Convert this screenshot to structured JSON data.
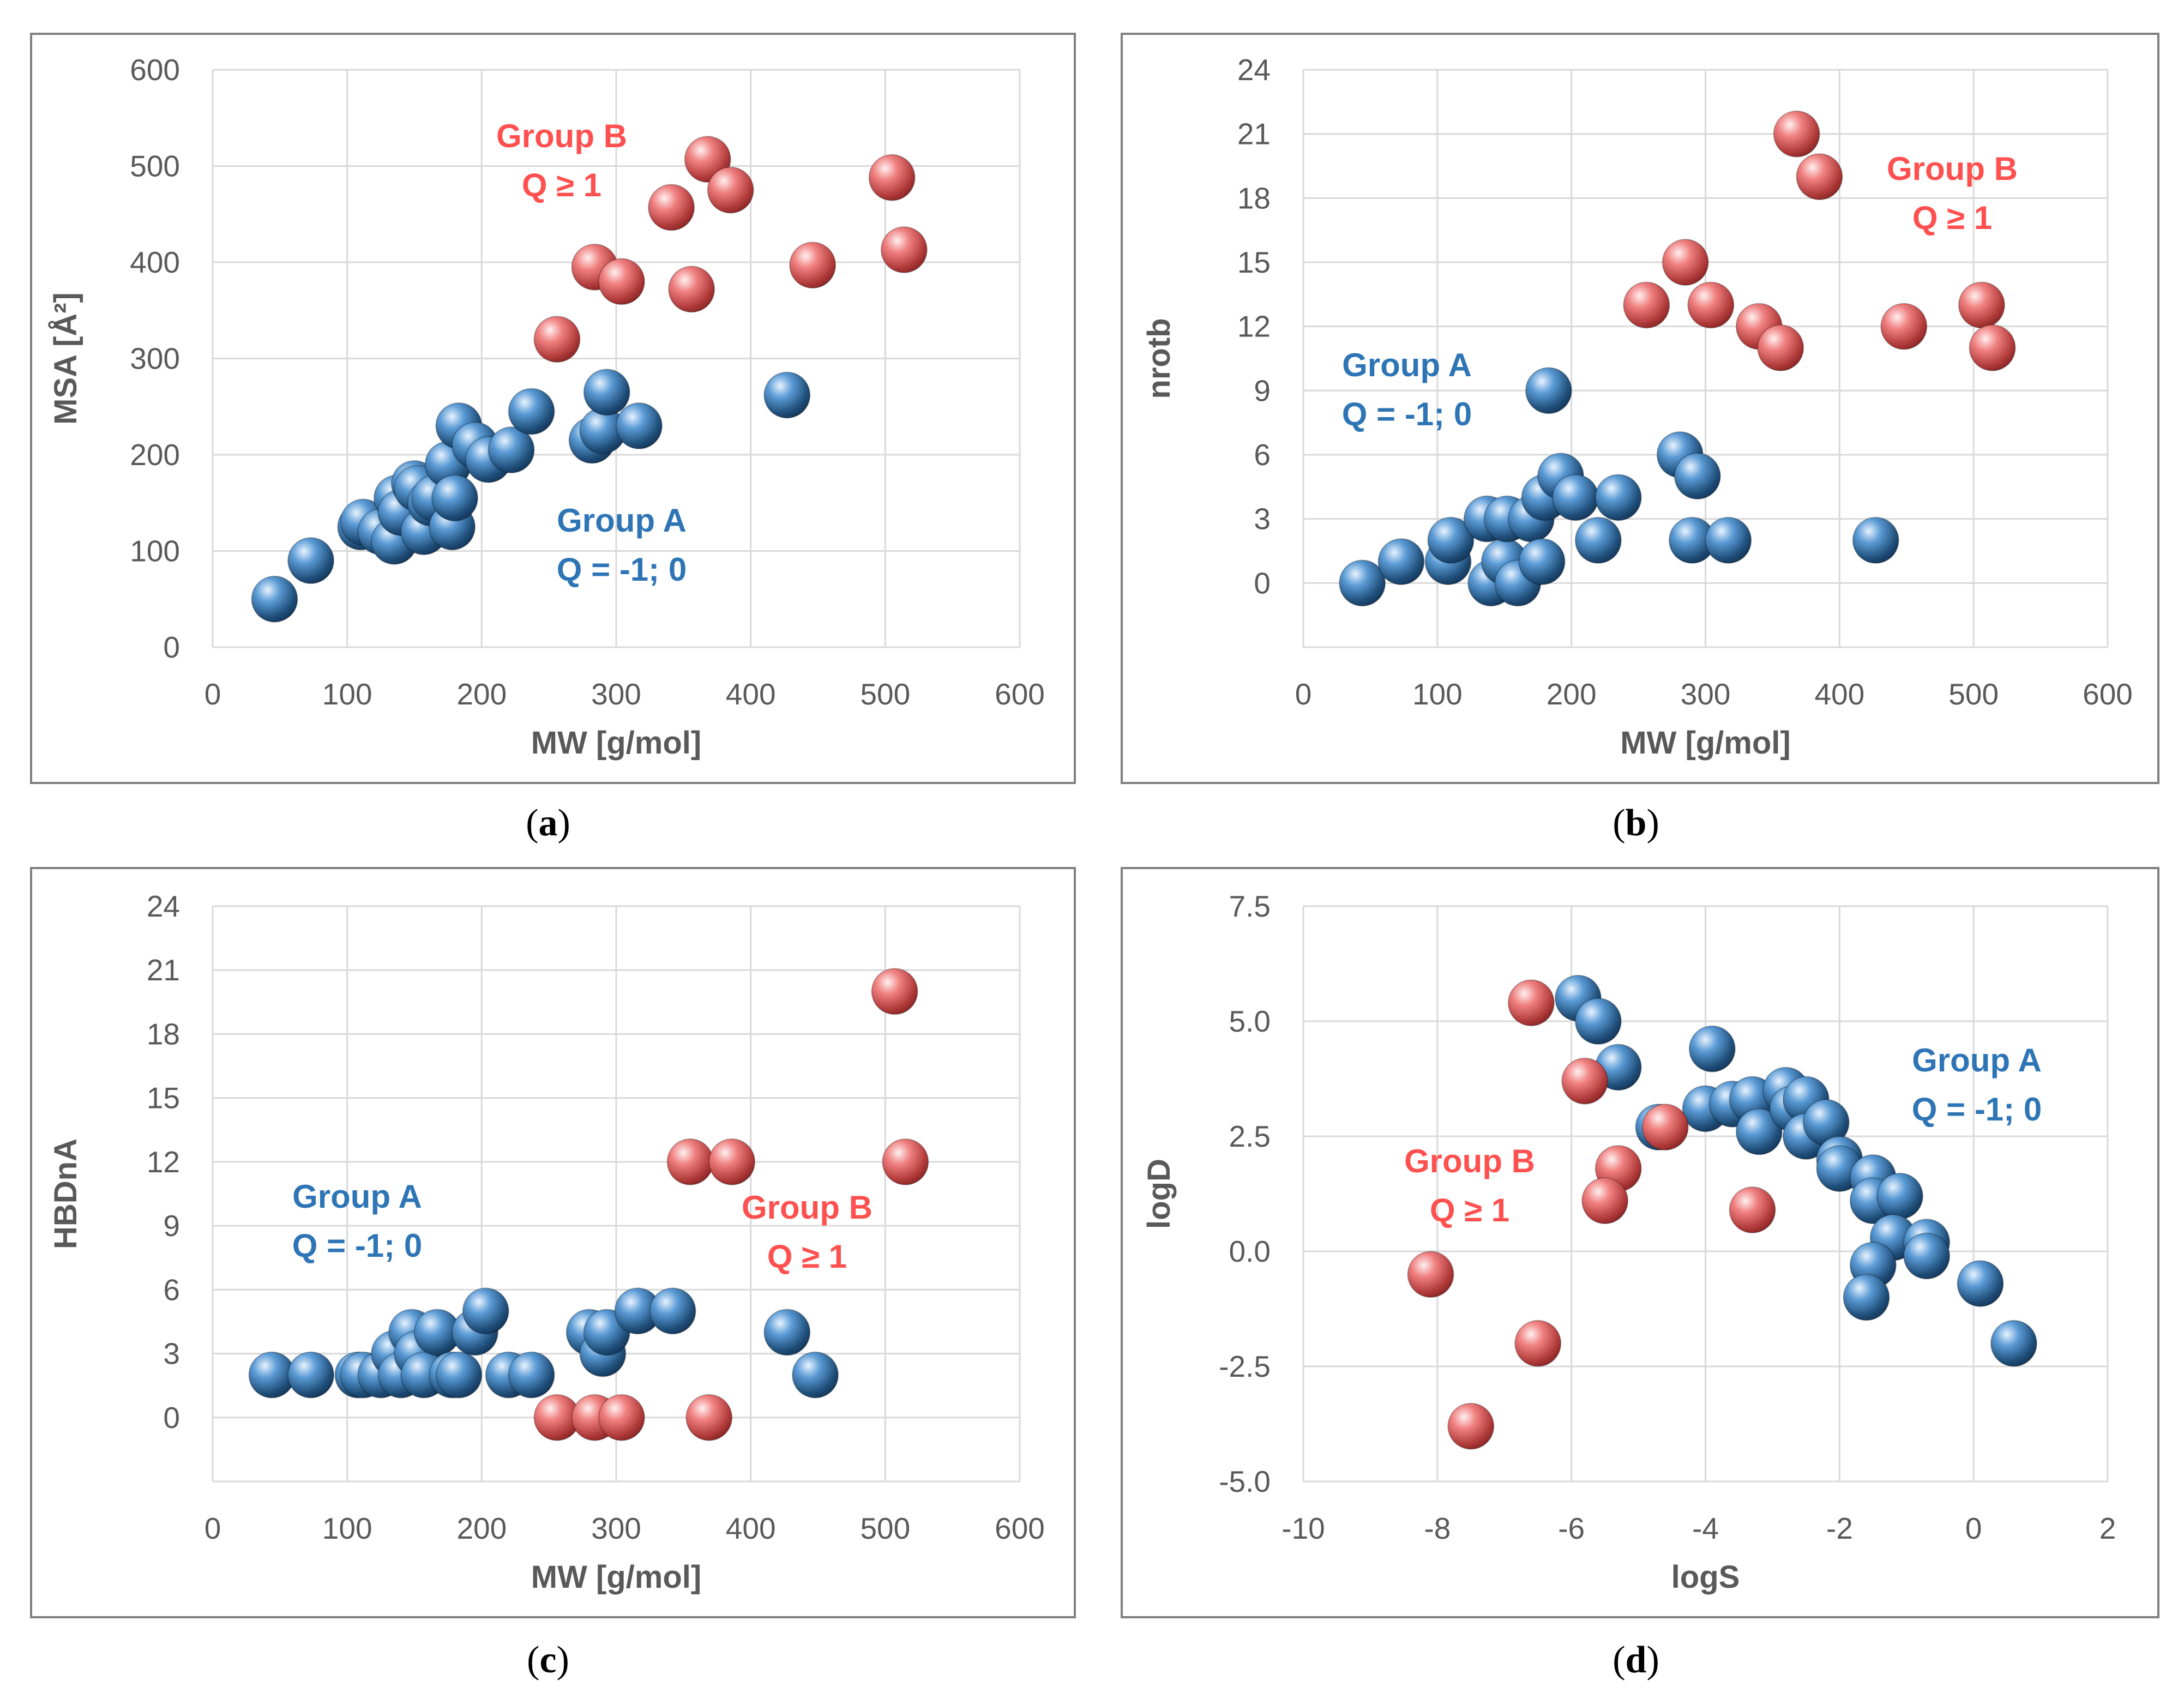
{
  "colors": {
    "group_a": "#2e75b6",
    "group_b": "#ff5050",
    "grid": "#d9d9d9",
    "axis_text": "#595959"
  },
  "chart_data": [
    {
      "type": "scatter",
      "id": "a",
      "caption_letter": "a",
      "xlabel": "MW [g/mol]",
      "ylabel": "MSA [Å²]",
      "xlim": [
        0,
        600
      ],
      "ylim": [
        0,
        600
      ],
      "xticks": [
        0,
        100,
        200,
        300,
        400,
        500,
        600
      ],
      "yticks": [
        0,
        100,
        200,
        300,
        400,
        500,
        600
      ],
      "xtick_labels": [
        "0",
        "100",
        "200",
        "300",
        "400",
        "500",
        "600"
      ],
      "ytick_labels": [
        "0",
        "100",
        "200",
        "300",
        "400",
        "500",
        "600"
      ],
      "annotations": [
        {
          "group": "A",
          "line1": "Group A",
          "line2": "Q = -1; 0"
        },
        {
          "group": "B",
          "line1": "Group B",
          "line2": "Q ≥ 1"
        }
      ],
      "series": [
        {
          "name": "Group A",
          "color": "#2e75b6",
          "points": [
            [
              46,
              50
            ],
            [
              73,
              90
            ],
            [
              110,
              125
            ],
            [
              112,
              130
            ],
            [
              125,
              120
            ],
            [
              135,
              110
            ],
            [
              137,
              155
            ],
            [
              140,
              140
            ],
            [
              150,
              170
            ],
            [
              152,
              165
            ],
            [
              157,
              120
            ],
            [
              162,
              150
            ],
            [
              165,
              155
            ],
            [
              175,
              190
            ],
            [
              178,
              125
            ],
            [
              180,
              155
            ],
            [
              183,
              230
            ],
            [
              195,
              210
            ],
            [
              205,
              195
            ],
            [
              222,
              205
            ],
            [
              237,
              245
            ],
            [
              282,
              215
            ],
            [
              290,
              225
            ],
            [
              293,
              265
            ],
            [
              317,
              230
            ],
            [
              427,
              262
            ]
          ]
        },
        {
          "name": "Group B",
          "color": "#ff5050",
          "points": [
            [
              256,
              320
            ],
            [
              284,
              395
            ],
            [
              304,
              380
            ],
            [
              341,
              457
            ],
            [
              356,
              372
            ],
            [
              368,
              507
            ],
            [
              385,
              475
            ],
            [
              446,
              397
            ],
            [
              505,
              488
            ],
            [
              514,
              413
            ]
          ]
        }
      ]
    },
    {
      "type": "scatter",
      "id": "b",
      "caption_letter": "b",
      "xlabel": "MW [g/mol]",
      "ylabel": "nrotb",
      "xlim": [
        0,
        600
      ],
      "ylim": [
        -3,
        24
      ],
      "xticks": [
        0,
        100,
        200,
        300,
        400,
        500,
        600
      ],
      "yticks": [
        0,
        3,
        6,
        9,
        12,
        15,
        18,
        21,
        24
      ],
      "xtick_labels": [
        "0",
        "100",
        "200",
        "300",
        "400",
        "500",
        "600"
      ],
      "ytick_labels": [
        "0",
        "3",
        "6",
        "9",
        "12",
        "15",
        "18",
        "21",
        "24"
      ],
      "annotations": [
        {
          "group": "A",
          "line1": "Group A",
          "line2": "Q = -1; 0"
        },
        {
          "group": "B",
          "line1": "Group B",
          "line2": "Q ≥ 1"
        }
      ],
      "series": [
        {
          "name": "Group A",
          "color": "#2e75b6",
          "points": [
            [
              44,
              0
            ],
            [
              73,
              1
            ],
            [
              108,
              1
            ],
            [
              110,
              2
            ],
            [
              137,
              3
            ],
            [
              140,
              0
            ],
            [
              150,
              1
            ],
            [
              152,
              3
            ],
            [
              160,
              0
            ],
            [
              170,
              3
            ],
            [
              178,
              1
            ],
            [
              180,
              4
            ],
            [
              183,
              9
            ],
            [
              192,
              5
            ],
            [
              203,
              4
            ],
            [
              220,
              2
            ],
            [
              235,
              4
            ],
            [
              281,
              6
            ],
            [
              290,
              2
            ],
            [
              294,
              5
            ],
            [
              317,
              2
            ],
            [
              427,
              2
            ]
          ]
        },
        {
          "name": "Group B",
          "color": "#ff5050",
          "points": [
            [
              256,
              13
            ],
            [
              285,
              15
            ],
            [
              304,
              13
            ],
            [
              340,
              12
            ],
            [
              356,
              11
            ],
            [
              368,
              21
            ],
            [
              385,
              19
            ],
            [
              448,
              12
            ],
            [
              506,
              13
            ],
            [
              514,
              11
            ]
          ]
        }
      ]
    },
    {
      "type": "scatter",
      "id": "c",
      "caption_letter": "c",
      "xlabel": "MW [g/mol]",
      "ylabel": "HBDnA",
      "xlim": [
        0,
        600
      ],
      "ylim": [
        -3,
        24
      ],
      "xticks": [
        0,
        100,
        200,
        300,
        400,
        500,
        600
      ],
      "yticks": [
        0,
        3,
        6,
        9,
        12,
        15,
        18,
        21,
        24
      ],
      "xtick_labels": [
        "0",
        "100",
        "200",
        "300",
        "400",
        "500",
        "600"
      ],
      "ytick_labels": [
        "0",
        "3",
        "6",
        "9",
        "12",
        "15",
        "18",
        "21",
        "24"
      ],
      "annotations": [
        {
          "group": "A",
          "line1": "Group A",
          "line2": "Q = -1; 0"
        },
        {
          "group": "B",
          "line1": "Group B",
          "line2": "Q ≥ 1"
        }
      ],
      "series": [
        {
          "name": "Group A",
          "color": "#2e75b6",
          "points": [
            [
              44,
              2
            ],
            [
              73,
              2
            ],
            [
              108,
              2
            ],
            [
              112,
              2
            ],
            [
              125,
              2
            ],
            [
              135,
              3
            ],
            [
              140,
              2
            ],
            [
              148,
              4
            ],
            [
              152,
              3
            ],
            [
              157,
              2
            ],
            [
              167,
              4
            ],
            [
              178,
              2
            ],
            [
              183,
              2
            ],
            [
              195,
              4
            ],
            [
              203,
              5
            ],
            [
              220,
              2
            ],
            [
              237,
              2
            ],
            [
              280,
              4
            ],
            [
              290,
              3
            ],
            [
              293,
              4
            ],
            [
              316,
              5
            ],
            [
              342,
              5
            ],
            [
              427,
              4
            ],
            [
              448,
              2
            ]
          ]
        },
        {
          "name": "Group B",
          "color": "#ff5050",
          "points": [
            [
              256,
              0
            ],
            [
              284,
              0
            ],
            [
              304,
              0
            ],
            [
              355,
              12
            ],
            [
              386,
              12
            ],
            [
              369,
              0
            ],
            [
              507,
              20
            ],
            [
              515,
              12
            ]
          ]
        }
      ]
    },
    {
      "type": "scatter",
      "id": "d",
      "caption_letter": "d",
      "xlabel": "logS",
      "ylabel": "logD",
      "xlim": [
        -10,
        2
      ],
      "ylim": [
        -5,
        7.5
      ],
      "xticks": [
        -10,
        -8,
        -6,
        -4,
        -2,
        0,
        2
      ],
      "yticks": [
        -5,
        -2.5,
        0,
        2.5,
        5,
        7.5
      ],
      "xtick_labels": [
        "-10",
        "-8",
        "-6",
        "-4",
        "-2",
        "0",
        "2"
      ],
      "ytick_labels": [
        "-5.0",
        "-2.5",
        "0.0",
        "2.5",
        "5.0",
        "7.5"
      ],
      "annotations": [
        {
          "group": "A",
          "line1": "Group A",
          "line2": "Q = -1; 0"
        },
        {
          "group": "B",
          "line1": "Group B",
          "line2": "Q ≥ 1"
        }
      ],
      "series": [
        {
          "name": "Group A",
          "color": "#2e75b6",
          "points": [
            [
              -5.9,
              5.5
            ],
            [
              -5.6,
              5.0
            ],
            [
              -5.3,
              4.0
            ],
            [
              -4.7,
              2.7
            ],
            [
              -3.9,
              4.4
            ],
            [
              -4.0,
              3.1
            ],
            [
              -3.6,
              3.2
            ],
            [
              -3.3,
              3.3
            ],
            [
              -3.2,
              2.6
            ],
            [
              -2.8,
              3.5
            ],
            [
              -2.7,
              3.1
            ],
            [
              -2.5,
              3.3
            ],
            [
              -2.5,
              2.5
            ],
            [
              -2.2,
              2.8
            ],
            [
              -2.0,
              2.0
            ],
            [
              -2.0,
              1.8
            ],
            [
              -1.5,
              1.6
            ],
            [
              -1.5,
              1.1
            ],
            [
              -1.1,
              1.2
            ],
            [
              -1.2,
              0.3
            ],
            [
              -0.7,
              0.2
            ],
            [
              -1.5,
              -0.3
            ],
            [
              -0.7,
              -0.1
            ],
            [
              -1.6,
              -1.0
            ],
            [
              0.1,
              -0.7
            ],
            [
              0.6,
              -2.0
            ]
          ]
        },
        {
          "name": "Group B",
          "color": "#ff5050",
          "points": [
            [
              -6.6,
              5.4
            ],
            [
              -5.8,
              3.7
            ],
            [
              -4.6,
              2.7
            ],
            [
              -5.3,
              1.8
            ],
            [
              -5.5,
              1.1
            ],
            [
              -3.3,
              0.9
            ],
            [
              -8.1,
              -0.5
            ],
            [
              -6.5,
              -2.0
            ],
            [
              -7.5,
              -3.8
            ]
          ]
        }
      ]
    }
  ]
}
